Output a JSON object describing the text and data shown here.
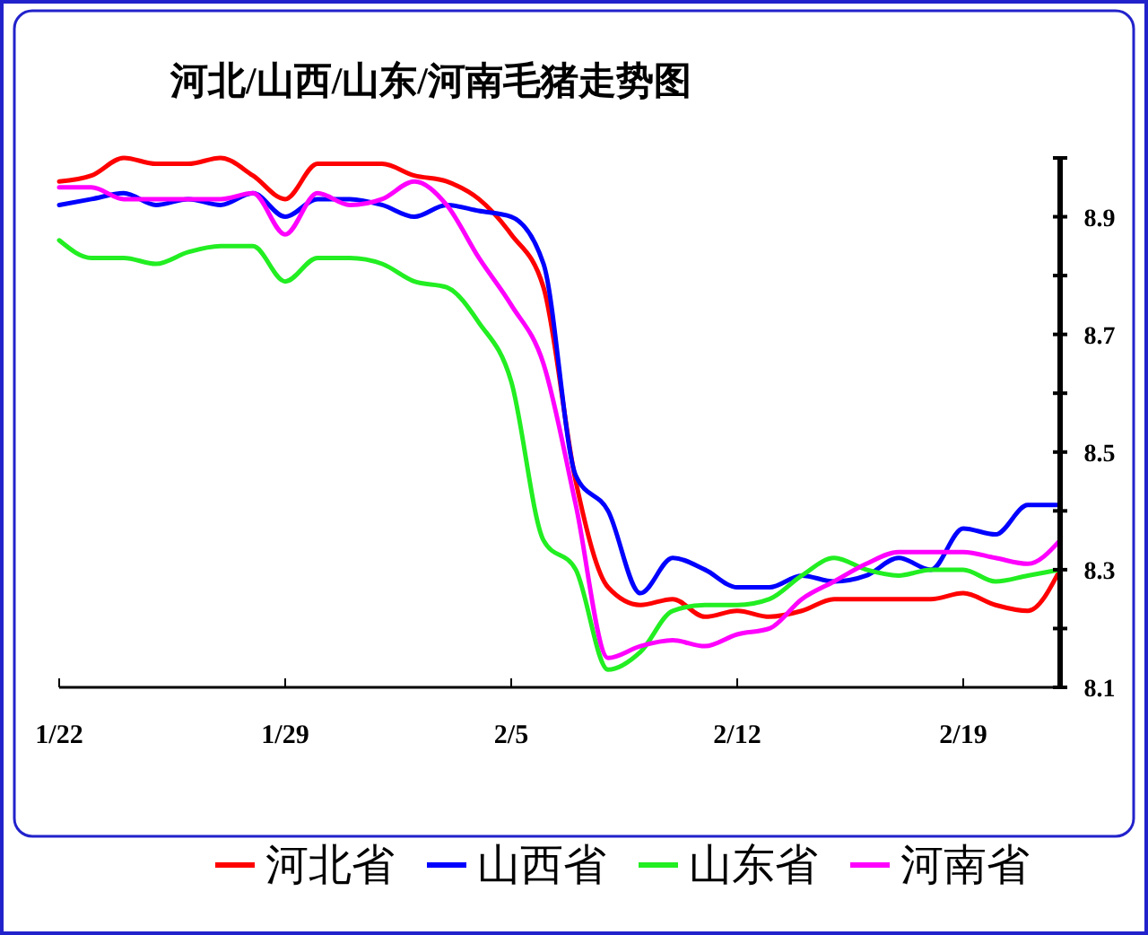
{
  "chart_data": {
    "type": "line",
    "title": "河北/山西/山东/河南毛猪走势图",
    "x": [
      "--01-22",
      "--01-23",
      "--01-24",
      "--01-25",
      "--01-26",
      "--01-27",
      "--01-28",
      "--01-29",
      "--01-30",
      "--01-31",
      "--02-01",
      "--02-02",
      "--02-03",
      "--02-04",
      "--02-05",
      "--02-06",
      "--02-07",
      "--02-08",
      "--02-09",
      "--02-10",
      "--02-11",
      "--02-12",
      "--02-13",
      "--02-14",
      "--02-15",
      "--02-16",
      "--02-17",
      "--02-18",
      "--02-19",
      "--02-20",
      "--02-21",
      "--02-22"
    ],
    "xlim": [
      "--01-22",
      "--02-22"
    ],
    "xticks": [
      {
        "value": "--01-22",
        "label": "1/22"
      },
      {
        "value": "--01-29",
        "label": "1/29"
      },
      {
        "value": "--02-05",
        "label": "2/5"
      },
      {
        "value": "--02-12",
        "label": "2/12"
      },
      {
        "value": "--02-19",
        "label": "2/19"
      }
    ],
    "ylim": [
      8.1,
      9.0
    ],
    "yticks": [
      8.1,
      {
        "value": 8.2,
        "label": null
      },
      8.3,
      {
        "value": 8.4,
        "label": null
      },
      8.5,
      {
        "value": 8.6,
        "label": null
      },
      8.7,
      {
        "value": 8.8,
        "label": null
      },
      8.9,
      {
        "value": 9.0,
        "label": null
      }
    ],
    "series": [
      {
        "name": "河北省",
        "color": "#ff0000",
        "values": [
          8.96,
          8.97,
          9.0,
          8.99,
          8.99,
          9.0,
          8.97,
          8.93,
          8.99,
          8.99,
          8.99,
          8.97,
          8.96,
          8.93,
          8.87,
          8.78,
          8.45,
          8.27,
          8.24,
          8.25,
          8.22,
          8.23,
          8.22,
          8.23,
          8.25,
          8.25,
          8.25,
          8.25,
          8.26,
          8.24,
          8.23,
          8.3
        ]
      },
      {
        "name": "山西省",
        "color": "#0000ff",
        "values": [
          8.92,
          8.93,
          8.94,
          8.92,
          8.93,
          8.92,
          8.94,
          8.9,
          8.93,
          8.93,
          8.92,
          8.9,
          8.92,
          8.91,
          8.9,
          8.82,
          8.46,
          8.4,
          8.26,
          8.32,
          8.3,
          8.27,
          8.27,
          8.29,
          8.28,
          8.29,
          8.32,
          8.3,
          8.37,
          8.36,
          8.41,
          8.41
        ]
      },
      {
        "name": "山东省",
        "color": "#22ee22",
        "values": [
          8.86,
          8.83,
          8.83,
          8.82,
          8.84,
          8.85,
          8.85,
          8.79,
          8.83,
          8.83,
          8.82,
          8.79,
          8.78,
          8.72,
          8.62,
          8.35,
          8.3,
          8.13,
          8.16,
          8.23,
          8.24,
          8.24,
          8.25,
          8.29,
          8.32,
          8.3,
          8.29,
          8.3,
          8.3,
          8.28,
          8.29,
          8.3
        ]
      },
      {
        "name": "河南省",
        "color": "#ff00ff",
        "values": [
          8.95,
          8.95,
          8.93,
          8.93,
          8.93,
          8.93,
          8.94,
          8.87,
          8.94,
          8.92,
          8.93,
          8.96,
          8.92,
          8.83,
          8.75,
          8.65,
          8.41,
          8.15,
          8.17,
          8.18,
          8.17,
          8.19,
          8.2,
          8.25,
          8.28,
          8.31,
          8.33,
          8.33,
          8.33,
          8.32,
          8.31,
          8.35
        ]
      }
    ],
    "legend": "bottom",
    "grid": false,
    "marker": "none",
    "line_style": "solid"
  }
}
